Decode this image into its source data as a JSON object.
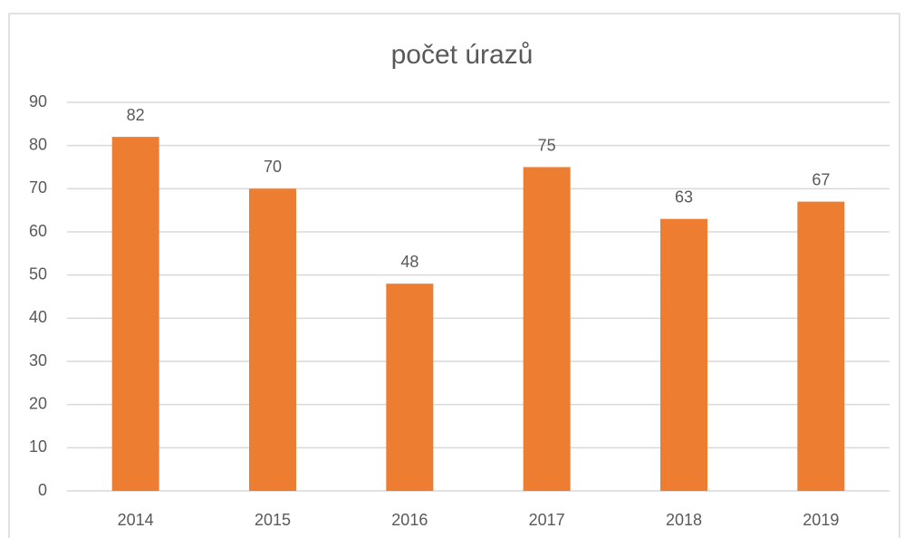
{
  "chart_data": {
    "type": "bar",
    "title": "počet úrazů",
    "categories": [
      "2014",
      "2015",
      "2016",
      "2017",
      "2018",
      "2019"
    ],
    "values": [
      82,
      70,
      48,
      75,
      63,
      67
    ],
    "color": "#ed7d31",
    "ylim": [
      0,
      90
    ],
    "yticks": [
      0,
      10,
      20,
      30,
      40,
      50,
      60,
      70,
      80,
      90
    ],
    "grid": true
  }
}
